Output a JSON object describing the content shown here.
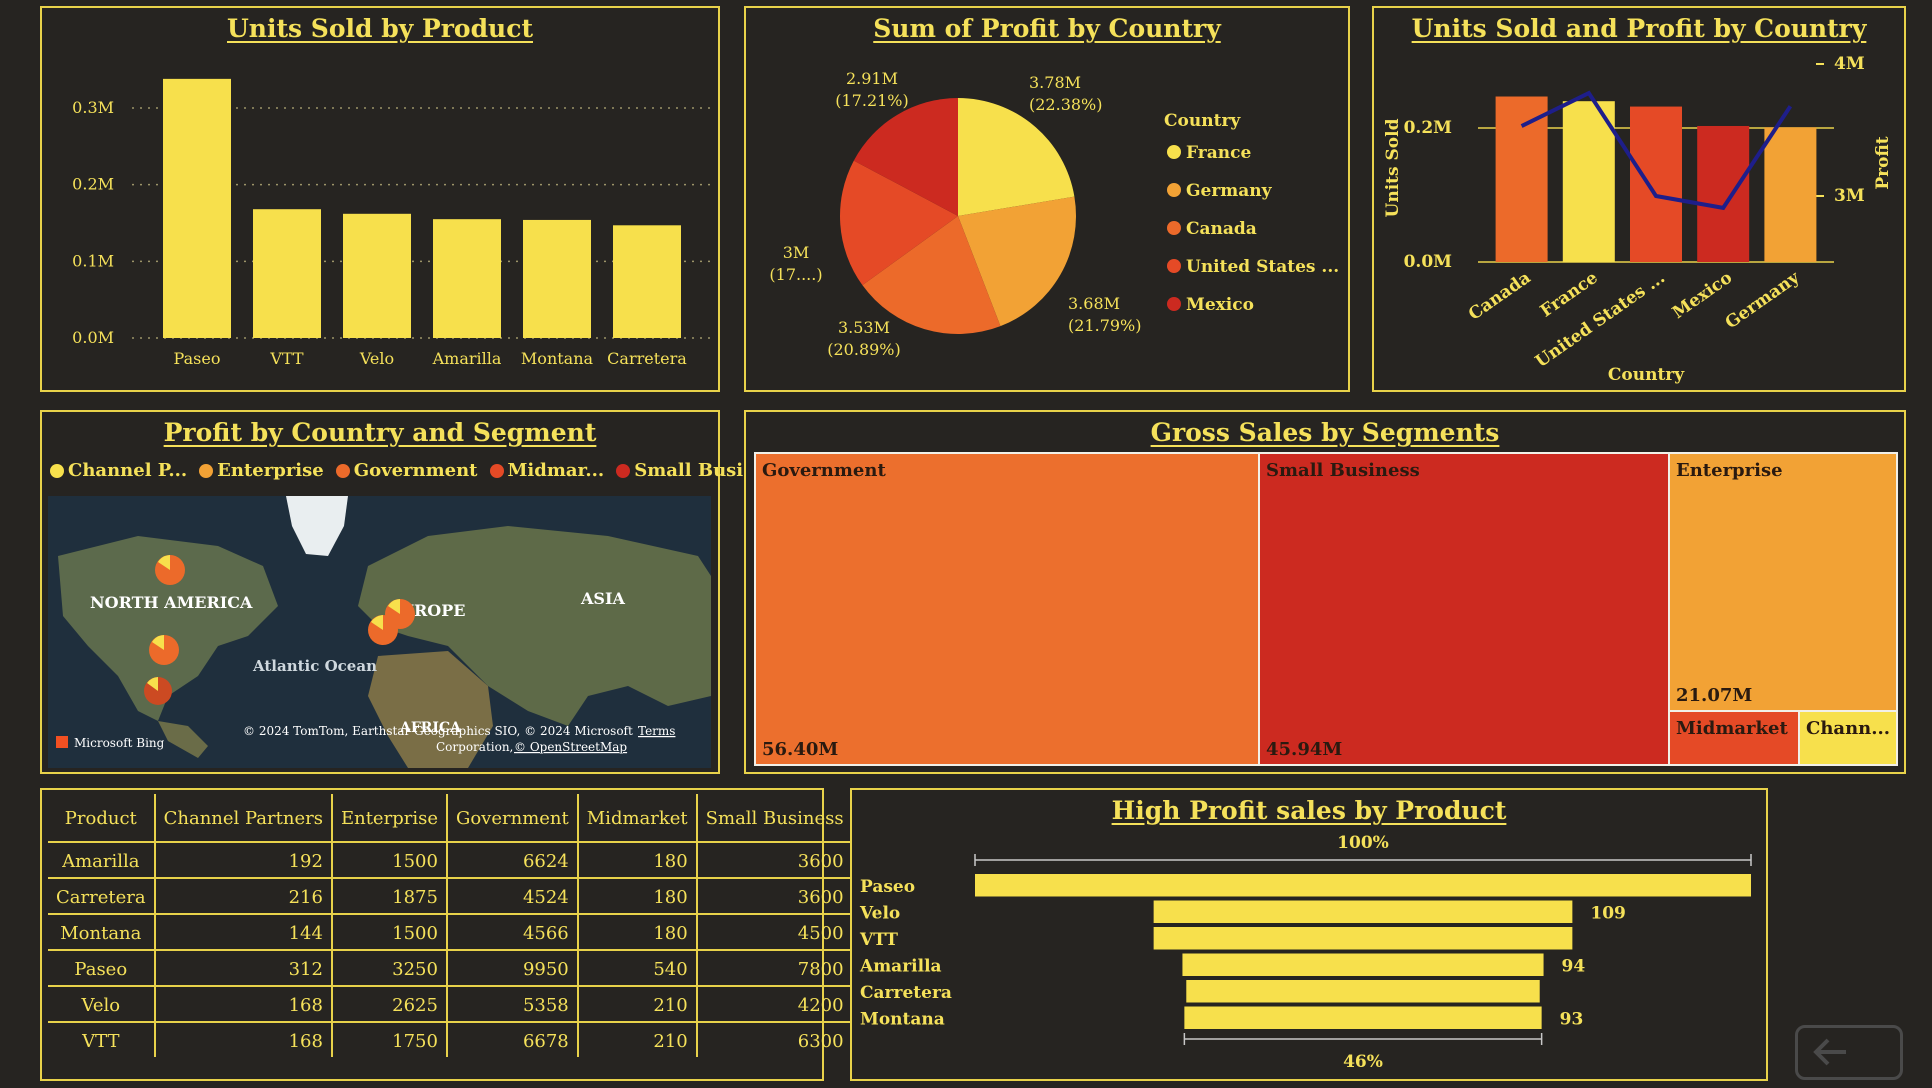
{
  "units_by_product": {
    "title": "Units Sold by Product",
    "chart_data": {
      "type": "bar",
      "title": "Units Sold by Product",
      "categories": [
        "Paseo",
        "VTT",
        "Velo",
        "Amarilla",
        "Montana",
        "Carretera"
      ],
      "values": [
        338000,
        168000,
        162000,
        155000,
        154000,
        147000
      ],
      "yticks": [
        "0.0M",
        "0.1M",
        "0.2M",
        "0.3M"
      ],
      "ylim": [
        0,
        0.3
      ],
      "grid": true
    }
  },
  "profit_by_country": {
    "title": "Sum of Profit by Country",
    "legend_title": "Country",
    "chart_data": {
      "type": "pie",
      "title": "Sum of Profit by Country",
      "slices": [
        {
          "label": "France",
          "value": 3.78,
          "text": "3.78M",
          "pct": "(22.38%)",
          "color": "#f7e04c"
        },
        {
          "label": "Germany",
          "value": 3.68,
          "text": "3.68M",
          "pct": "(21.79%)",
          "color": "#f2a235"
        },
        {
          "label": "Canada",
          "value": 3.53,
          "text": "3.53M",
          "pct": "(20.89%)",
          "color": "#ec6a2a"
        },
        {
          "label": "United States ...",
          "value": 3.0,
          "text": "3M",
          "pct": "(17....)",
          "color": "#e54a26"
        },
        {
          "label": "Mexico",
          "value": 2.91,
          "text": "2.91M",
          "pct": "(17.21%)",
          "color": "#cc2a20"
        }
      ]
    }
  },
  "units_profit_by_country": {
    "title": "Units Sold and Profit by Country",
    "chart_data": {
      "type": "bar",
      "title": "Units Sold and Profit by Country",
      "categories": [
        "Canada",
        "France",
        "United States ...",
        "Mexico",
        "Germany"
      ],
      "xlabel": "Country",
      "y_left_label": "Units Sold",
      "y_right_label": "Profit",
      "y_left_ticks": [
        "0.0M",
        "0.2M"
      ],
      "y_right_ticks": [
        "3M",
        "4M"
      ],
      "series": [
        {
          "name": "Units Sold",
          "values": [
            247000,
            240000,
            232000,
            203000,
            201000
          ],
          "colors": [
            "#ec6a2a",
            "#f7e04c",
            "#e54a26",
            "#cc2a20",
            "#f2a235"
          ]
        },
        {
          "name": "Profit",
          "type": "line",
          "values": [
            3.53,
            3.78,
            3.0,
            2.91,
            3.68
          ],
          "color": "#1e1e8a"
        }
      ]
    }
  },
  "profit_map": {
    "title": "Profit by Country and Segment",
    "legend": [
      {
        "label": "Channel P...",
        "color": "#f7e04c"
      },
      {
        "label": "Enterprise",
        "color": "#f2a235"
      },
      {
        "label": "Government",
        "color": "#ec6a2a"
      },
      {
        "label": "Midmar...",
        "color": "#e54a26"
      },
      {
        "label": "Small Busi...",
        "color": "#cc2a20"
      }
    ],
    "labels": {
      "na": "NORTH AMERICA",
      "eu": "UROPE",
      "asia": "ASIA",
      "ocean": "Atlantic Ocean",
      "africa": "AFRICA"
    },
    "attribution": "© 2024 TomTom, Earthstar Geographics SIO, © 2024 Microsoft",
    "attribution2": "Corporation,",
    "osm": "© OpenStreetMap",
    "terms": "Terms",
    "bing": "Microsoft Bing"
  },
  "gross_sales": {
    "title": "Gross Sales by Segments",
    "chart_data": {
      "type": "heatmap",
      "title": "Gross Sales by Segments",
      "cells": [
        {
          "label": "Government",
          "value": "56.40M",
          "color": "#ec6f2d"
        },
        {
          "label": "Small Business",
          "value": "45.94M",
          "color": "#cc2a20"
        },
        {
          "label": "Enterprise",
          "value": "21.07M",
          "color": "#f2a235"
        },
        {
          "label": "Midmarket",
          "value": "",
          "color": "#e54a26"
        },
        {
          "label": "Chann...",
          "value": "",
          "color": "#f7e04c"
        }
      ]
    }
  },
  "matrix": {
    "headers": [
      "Product",
      "Channel Partners",
      "Enterprise",
      "Government",
      "Midmarket",
      "Small Business"
    ],
    "rows": [
      [
        "Amarilla",
        "192",
        "1500",
        "6624",
        "180",
        "3600"
      ],
      [
        "Carretera",
        "216",
        "1875",
        "4524",
        "180",
        "3600"
      ],
      [
        "Montana",
        "144",
        "1500",
        "4566",
        "180",
        "4500"
      ],
      [
        "Paseo",
        "312",
        "3250",
        "9950",
        "540",
        "7800"
      ],
      [
        "Velo",
        "168",
        "2625",
        "5358",
        "210",
        "4200"
      ],
      [
        "VTT",
        "168",
        "1750",
        "6678",
        "210",
        "6300"
      ]
    ]
  },
  "funnel": {
    "title": "High Profit sales by Product",
    "top_pct": "100%",
    "bottom_pct": "46%",
    "chart_data": {
      "type": "bar",
      "title": "High Profit sales by Product",
      "categories": [
        "Paseo",
        "Velo",
        "VTT",
        "Amarilla",
        "Carretera",
        "Montana"
      ],
      "values": [
        202,
        109,
        109,
        94,
        92,
        93
      ],
      "value_labels": [
        "",
        "109",
        "",
        "94",
        "",
        "93"
      ]
    }
  }
}
